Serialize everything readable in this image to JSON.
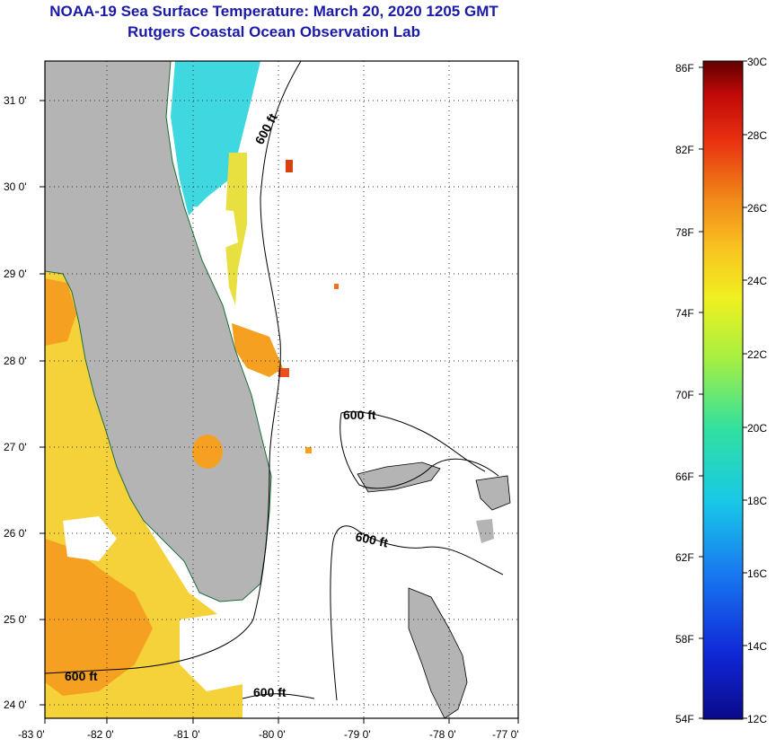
{
  "header": {
    "title": "NOAA-19 Sea Surface Temperature:  March 20, 2020 1205 GMT",
    "subtitle": "Rutgers Coastal Ocean Observation Lab"
  },
  "map": {
    "lon_labels": [
      "-83 0'",
      "-82 0'",
      "-81 0'",
      "-80 0'",
      "-79 0'",
      "-78 0'",
      "-77 0'"
    ],
    "lat_labels": [
      "31 0'",
      "30 0'",
      "29 0'",
      "28 0'",
      "27 0'",
      "26 0'",
      "25 0'",
      "24 0'"
    ],
    "contour_labels": [
      "600 ft",
      "600 ft",
      "600 ft",
      "600 ft",
      "600 ft"
    ],
    "colors": {
      "land": "#b4b4b4",
      "cloud": "#ffffff",
      "gulf_warm": "#f6d23a",
      "orange": "#f5a020",
      "cool": "#40d8e0"
    }
  },
  "colorbar": {
    "fahrenheit_labels": [
      "86F",
      "82F",
      "78F",
      "74F",
      "70F",
      "66F",
      "62F",
      "58F",
      "54F"
    ],
    "celsius_labels": [
      "30C",
      "28C",
      "26C",
      "24C",
      "22C",
      "20C",
      "18C",
      "16C",
      "14C",
      "12C"
    ],
    "range_f": [
      54,
      86
    ],
    "range_c": [
      12,
      30
    ]
  }
}
